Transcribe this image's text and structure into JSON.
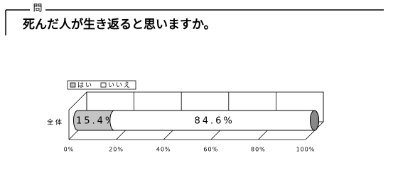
{
  "header": {
    "label": "問",
    "question": "死んだ人が生き返ると思いますか。"
  },
  "chart_data": {
    "type": "stacked-bar-3d",
    "categories": [
      "全体"
    ],
    "series": [
      {
        "name": "はい",
        "color": "#c4c4c4",
        "values": [
          15.4
        ],
        "value_labels": [
          "15.4%"
        ]
      },
      {
        "name": "いいえ",
        "color": "#ffffff",
        "values": [
          84.6
        ],
        "value_labels": [
          "84.6%"
        ]
      }
    ],
    "xlim": [
      0,
      100
    ],
    "xticks": [
      {
        "value": 0,
        "label": "0%"
      },
      {
        "value": 20,
        "label": "20%"
      },
      {
        "value": 40,
        "label": "40%"
      },
      {
        "value": 60,
        "label": "60%"
      },
      {
        "value": 80,
        "label": "80%"
      },
      {
        "value": 100,
        "label": "100%"
      }
    ],
    "grid": true
  }
}
